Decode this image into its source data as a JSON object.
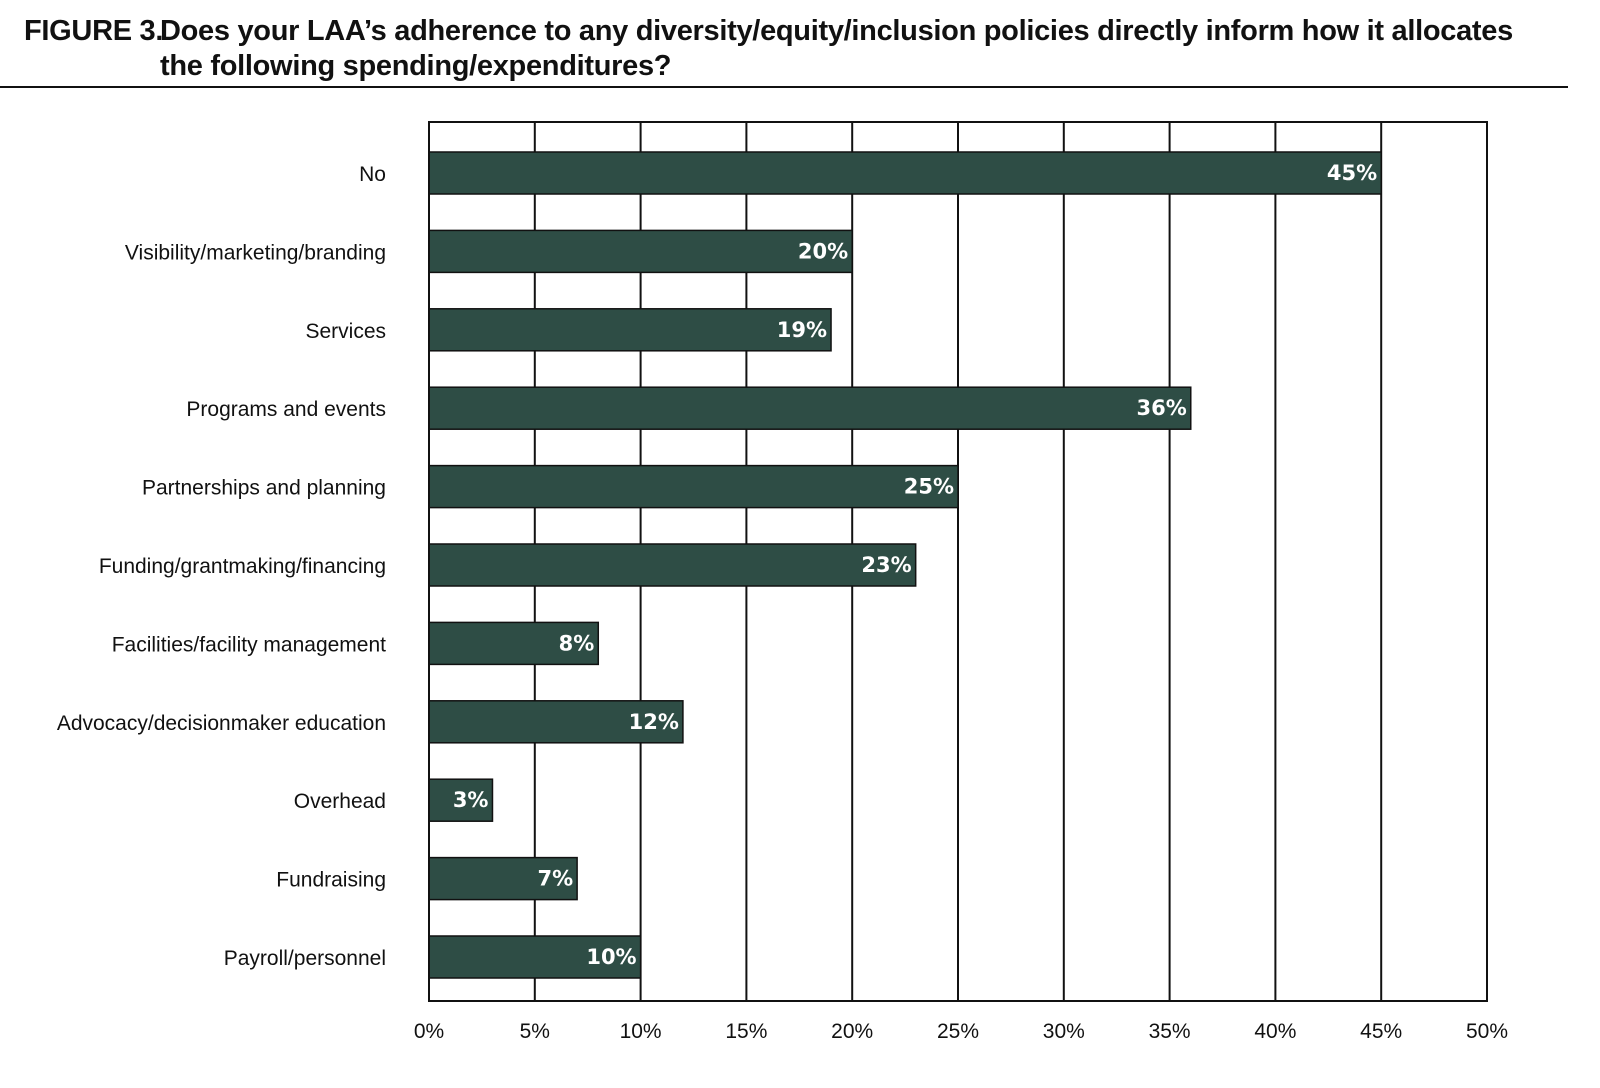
{
  "figure": {
    "label": "FIGURE 3.",
    "title_line1": "Does your LAA’s adherence to any diversity/equity/inclusion policies directly inform how it allocates",
    "title_line2": "the following spending/expenditures?"
  },
  "colors": {
    "bar": "#2e4d45",
    "bar_border": "#111111",
    "grid": "#111111",
    "data_label": "#ffffff"
  },
  "chart_data": {
    "type": "bar",
    "orientation": "horizontal",
    "title": "Does your LAA’s adherence to any diversity/equity/inclusion policies directly inform how it allocates the following spending/expenditures?",
    "categories": [
      "No",
      "Visibility/marketing/branding",
      "Services",
      "Programs and events",
      "Partnerships and planning",
      "Funding/grantmaking/financing",
      "Facilities/facility management",
      "Advocacy/decisionmaker education",
      "Overhead",
      "Fundraising",
      "Payroll/personnel"
    ],
    "values": [
      45,
      20,
      19,
      36,
      25,
      23,
      8,
      12,
      3,
      7,
      10
    ],
    "value_labels": [
      "45%",
      "20%",
      "19%",
      "36%",
      "25%",
      "23%",
      "8%",
      "12%",
      "3%",
      "7%",
      "10%"
    ],
    "xlim": [
      0,
      50
    ],
    "x_ticks": [
      0,
      5,
      10,
      15,
      20,
      25,
      30,
      35,
      40,
      45,
      50
    ],
    "x_tick_labels": [
      "0%",
      "5%",
      "10%",
      "15%",
      "20%",
      "25%",
      "30%",
      "35%",
      "40%",
      "45%",
      "50%"
    ],
    "xlabel": "",
    "ylabel": "",
    "grid": true,
    "legend": "none"
  }
}
